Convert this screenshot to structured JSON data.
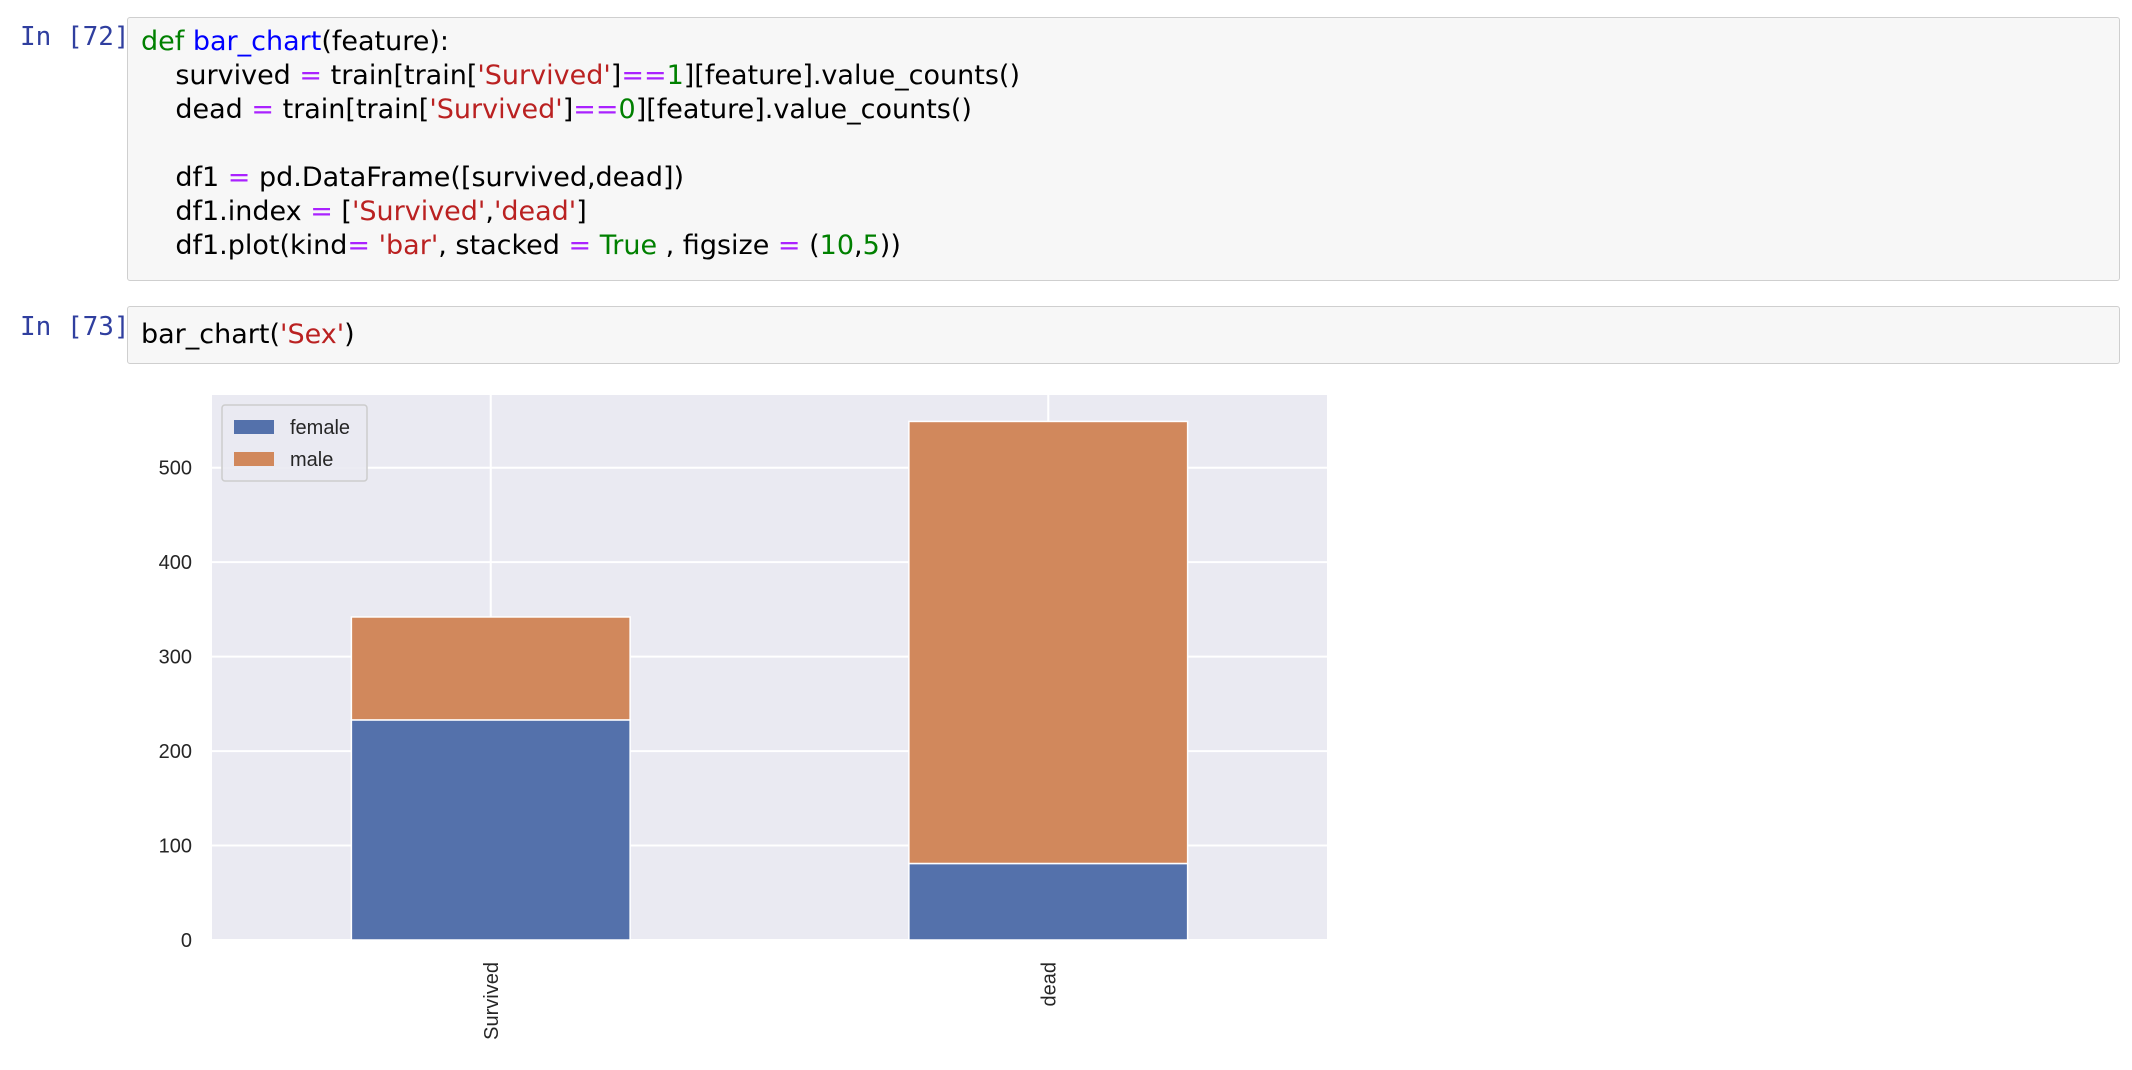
{
  "cells": [
    {
      "prompt": "In [72]:",
      "code_lines": [
        [
          {
            "t": "def",
            "c": "kw"
          },
          {
            "t": " "
          },
          {
            "t": "bar_chart",
            "c": "fn"
          },
          {
            "t": "(feature):"
          }
        ],
        [
          {
            "t": "    survived "
          },
          {
            "t": "=",
            "c": "op"
          },
          {
            "t": " train[train["
          },
          {
            "t": "'Survived'",
            "c": "st"
          },
          {
            "t": "]"
          },
          {
            "t": "==",
            "c": "op"
          },
          {
            "t": "1",
            "c": "nu"
          },
          {
            "t": "][feature].value_counts()"
          }
        ],
        [
          {
            "t": "    dead "
          },
          {
            "t": "=",
            "c": "op"
          },
          {
            "t": " train[train["
          },
          {
            "t": "'Survived'",
            "c": "st"
          },
          {
            "t": "]"
          },
          {
            "t": "==",
            "c": "op"
          },
          {
            "t": "0",
            "c": "nu"
          },
          {
            "t": "][feature].value_counts()"
          }
        ],
        [
          {
            "t": ""
          }
        ],
        [
          {
            "t": "    df1 "
          },
          {
            "t": "=",
            "c": "op"
          },
          {
            "t": " pd.DataFrame([survived,dead])"
          }
        ],
        [
          {
            "t": "    df1.index "
          },
          {
            "t": "=",
            "c": "op"
          },
          {
            "t": " ["
          },
          {
            "t": "'Survived'",
            "c": "st"
          },
          {
            "t": ","
          },
          {
            "t": "'dead'",
            "c": "st"
          },
          {
            "t": "]"
          }
        ],
        [
          {
            "t": "    df1.plot(kind"
          },
          {
            "t": "=",
            "c": "op"
          },
          {
            "t": " "
          },
          {
            "t": "'bar'",
            "c": "st"
          },
          {
            "t": ", stacked "
          },
          {
            "t": "=",
            "c": "op"
          },
          {
            "t": " "
          },
          {
            "t": "True",
            "c": "bi"
          },
          {
            "t": " , figsize "
          },
          {
            "t": "=",
            "c": "op"
          },
          {
            "t": " ("
          },
          {
            "t": "10",
            "c": "nu"
          },
          {
            "t": ","
          },
          {
            "t": "5",
            "c": "nu"
          },
          {
            "t": "))"
          }
        ]
      ]
    },
    {
      "prompt": "In [73]:",
      "code_lines": [
        [
          {
            "t": "bar_chart("
          },
          {
            "t": "'Sex'",
            "c": "st"
          },
          {
            "t": ")"
          }
        ]
      ]
    }
  ],
  "chart_data": {
    "type": "bar",
    "stacked": true,
    "categories": [
      "Survived",
      "dead"
    ],
    "series": [
      {
        "name": "female",
        "values": [
          233,
          81
        ],
        "color": "#5471ab"
      },
      {
        "name": "male",
        "values": [
          109,
          468
        ],
        "color": "#d1885c"
      }
    ],
    "ylim": [
      0,
      577
    ],
    "yticks": [
      0,
      100,
      200,
      300,
      400,
      500
    ],
    "grid": true,
    "legend_position": "top-left",
    "xtick_rotation": 90,
    "background": "#eaeaf2"
  }
}
